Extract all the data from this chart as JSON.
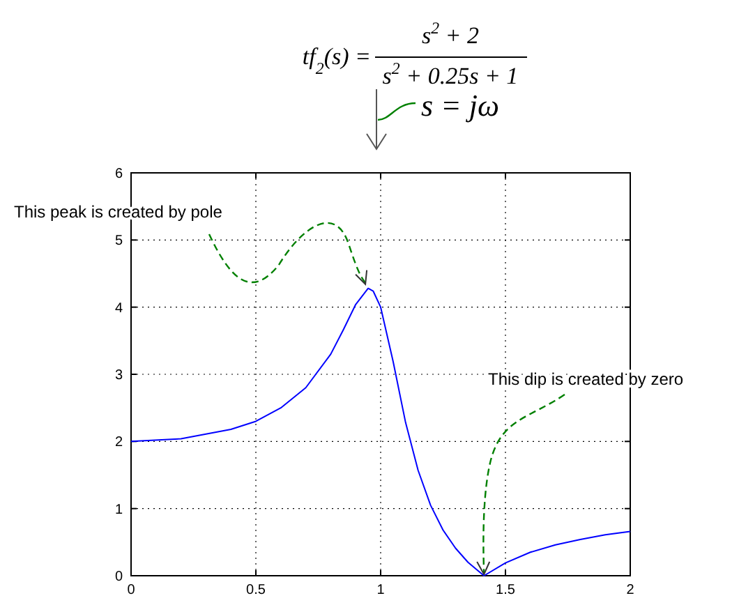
{
  "chart_data": {
    "type": "line",
    "x": [
      0,
      0.2,
      0.4,
      0.5,
      0.6,
      0.7,
      0.8,
      0.85,
      0.9,
      0.95,
      0.97,
      1.0,
      1.05,
      1.1,
      1.15,
      1.2,
      1.25,
      1.3,
      1.35,
      1.414,
      1.5,
      1.6,
      1.7,
      1.8,
      1.9,
      2.0
    ],
    "series": [
      {
        "color": "#0000ff",
        "values": [
          2,
          2.04,
          2.18,
          2.3,
          2.5,
          2.8,
          3.3,
          3.66,
          4.04,
          4.28,
          4.24,
          4.0,
          3.19,
          2.28,
          1.57,
          1.05,
          0.68,
          0.41,
          0.2,
          0,
          0.19,
          0.35,
          0.46,
          0.54,
          0.61,
          0.66
        ]
      }
    ],
    "xlim": [
      0,
      2
    ],
    "xticks": [
      0,
      0.5,
      1,
      1.5,
      2
    ],
    "ylim": [
      0,
      6
    ],
    "yticks": [
      0,
      1,
      2,
      3,
      4,
      5,
      6
    ],
    "grid": true,
    "line_style": "solid",
    "marker": "none",
    "annotations": [
      "tf$_{2}$(s) =",
      "s$^{2}$ + 2",
      "s$^{2}$ + 0.25s + 1",
      "s = jω",
      {
        "text": "This peak is created by pole",
        "x": 0.95,
        "y": 4.28
      },
      {
        "text": "This dip is created by zero",
        "x": 1.414,
        "y": 0
      }
    ]
  }
}
